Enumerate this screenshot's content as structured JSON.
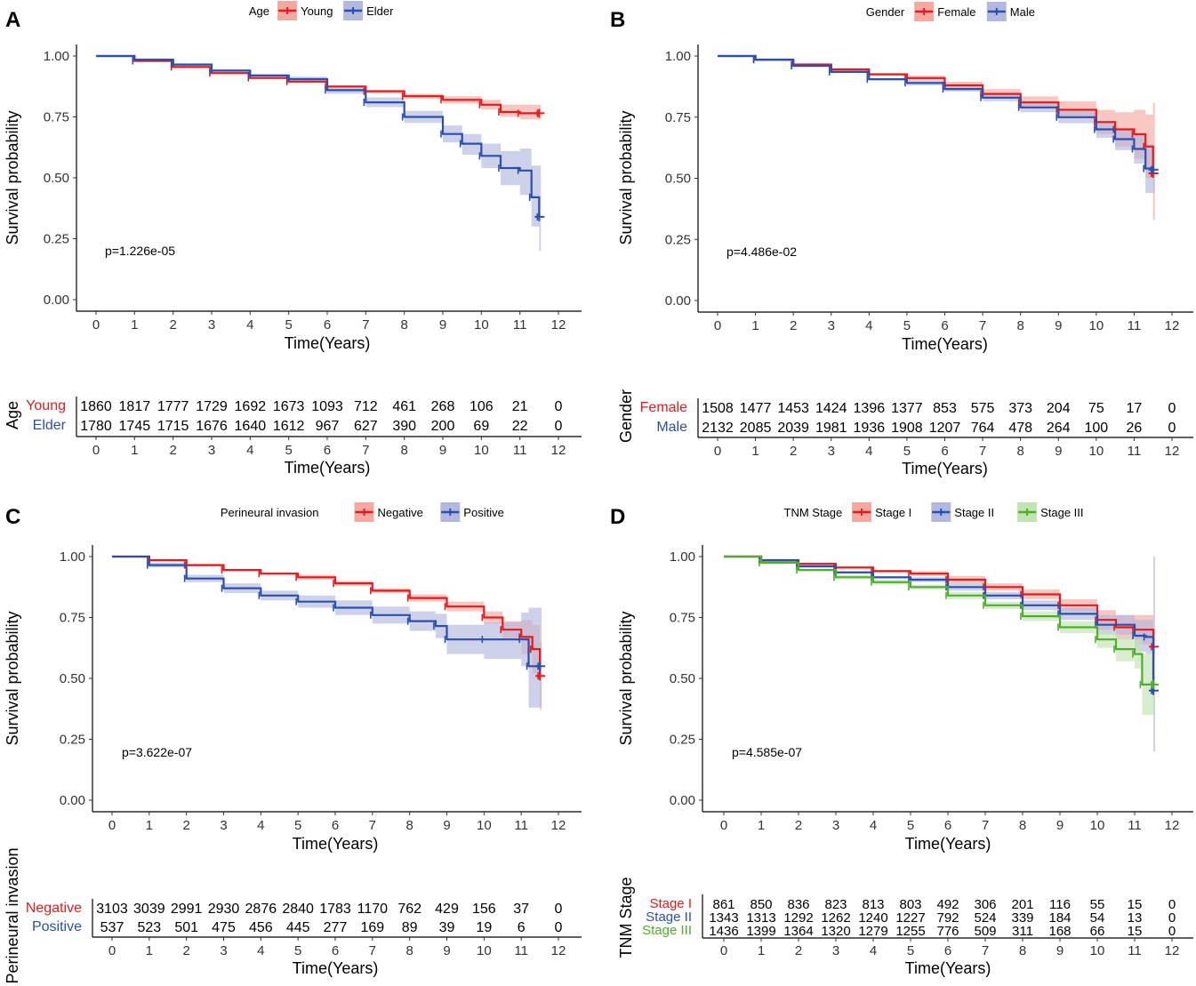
{
  "chart_data": [
    {
      "type": "line",
      "panel": "A",
      "title": "",
      "legend_title": "Age",
      "legend_position": "top",
      "xlabel": "Time(Years)",
      "ylabel": "Survival probability",
      "xlim": [
        0,
        12
      ],
      "ylim": [
        0,
        1
      ],
      "x_ticks": [
        "0",
        "1",
        "2",
        "3",
        "4",
        "5",
        "6",
        "7",
        "8",
        "9",
        "10",
        "11",
        "12"
      ],
      "y_ticks": [
        "0.00",
        "0.25",
        "0.50",
        "0.75",
        "1.00"
      ],
      "annotation": "p=1.226e-05",
      "series": [
        {
          "name": "Young",
          "color": "#e41a1c",
          "band": "#f4a9a0",
          "x": [
            0,
            1,
            2,
            3,
            4,
            5,
            6,
            7,
            8,
            9,
            10,
            10.5,
            11,
            11.5
          ],
          "y": [
            1.0,
            0.98,
            0.955,
            0.93,
            0.91,
            0.895,
            0.875,
            0.855,
            0.835,
            0.82,
            0.8,
            0.77,
            0.765,
            0.765
          ],
          "lower": [
            1,
            0.975,
            0.95,
            0.925,
            0.905,
            0.89,
            0.87,
            0.847,
            0.825,
            0.805,
            0.78,
            0.75,
            0.74,
            0.74
          ],
          "upper": [
            1,
            0.985,
            0.96,
            0.935,
            0.915,
            0.9,
            0.88,
            0.862,
            0.845,
            0.835,
            0.82,
            0.8,
            0.8,
            0.8
          ]
        },
        {
          "name": "Elder",
          "color": "#2b4fad",
          "band": "#b3b8de",
          "x": [
            0,
            1,
            2,
            3,
            4,
            5,
            6,
            7,
            8,
            9,
            9.5,
            10,
            10.5,
            11,
            11.3,
            11.5
          ],
          "y": [
            1.0,
            0.985,
            0.965,
            0.94,
            0.92,
            0.905,
            0.86,
            0.81,
            0.75,
            0.68,
            0.64,
            0.59,
            0.54,
            0.53,
            0.42,
            0.34
          ],
          "lower": [
            1,
            0.98,
            0.96,
            0.935,
            0.915,
            0.895,
            0.845,
            0.79,
            0.725,
            0.645,
            0.595,
            0.54,
            0.47,
            0.43,
            0.3,
            0.2
          ],
          "upper": [
            1,
            0.99,
            0.97,
            0.945,
            0.925,
            0.915,
            0.875,
            0.83,
            0.775,
            0.715,
            0.68,
            0.64,
            0.61,
            0.62,
            0.55,
            0.55
          ]
        }
      ],
      "risk_table": {
        "title": "Age",
        "rows": [
          {
            "label": "Young",
            "values": [
              "1860",
              "1817",
              "1777",
              "1729",
              "1692",
              "1673",
              "1093",
              "712",
              "461",
              "268",
              "106",
              "21",
              "0"
            ]
          },
          {
            "label": "Elder",
            "values": [
              "1780",
              "1745",
              "1715",
              "1676",
              "1640",
              "1612",
              "967",
              "627",
              "390",
              "200",
              "69",
              "22",
              "0"
            ]
          }
        ]
      }
    },
    {
      "type": "line",
      "panel": "B",
      "title": "",
      "legend_title": "Gender",
      "legend_position": "top",
      "xlabel": "Time(Years)",
      "ylabel": "Survival probability",
      "xlim": [
        0,
        12
      ],
      "ylim": [
        0,
        1
      ],
      "x_ticks": [
        "0",
        "1",
        "2",
        "3",
        "4",
        "5",
        "6",
        "7",
        "8",
        "9",
        "10",
        "11",
        "12"
      ],
      "y_ticks": [
        "0.00",
        "0.25",
        "0.50",
        "0.75",
        "1.00"
      ],
      "annotation": "p=4.486e-02",
      "series": [
        {
          "name": "Female",
          "color": "#e41a1c",
          "band": "#f4a9a0",
          "x": [
            0,
            1,
            2,
            3,
            4,
            5,
            6,
            7,
            8,
            9,
            10,
            10.5,
            11,
            11.3,
            11.5
          ],
          "y": [
            1.0,
            0.985,
            0.965,
            0.945,
            0.925,
            0.91,
            0.88,
            0.845,
            0.81,
            0.78,
            0.73,
            0.7,
            0.68,
            0.63,
            0.52
          ],
          "lower": [
            1,
            0.98,
            0.96,
            0.94,
            0.92,
            0.9,
            0.865,
            0.825,
            0.785,
            0.745,
            0.68,
            0.63,
            0.58,
            0.5,
            0.33
          ],
          "upper": [
            1,
            0.99,
            0.97,
            0.95,
            0.93,
            0.92,
            0.895,
            0.865,
            0.835,
            0.815,
            0.78,
            0.77,
            0.78,
            0.76,
            0.81
          ]
        },
        {
          "name": "Male",
          "color": "#2b4fad",
          "band": "#b3b8de",
          "x": [
            0,
            1,
            2,
            3,
            4,
            5,
            6,
            7,
            8,
            9,
            10,
            10.5,
            11,
            11.3,
            11.5
          ],
          "y": [
            1.0,
            0.985,
            0.96,
            0.935,
            0.905,
            0.89,
            0.865,
            0.83,
            0.79,
            0.75,
            0.7,
            0.66,
            0.62,
            0.54,
            0.535
          ],
          "lower": [
            1,
            0.98,
            0.955,
            0.93,
            0.9,
            0.88,
            0.855,
            0.815,
            0.77,
            0.725,
            0.665,
            0.615,
            0.56,
            0.44,
            0.44
          ],
          "upper": [
            1,
            0.99,
            0.965,
            0.94,
            0.91,
            0.9,
            0.875,
            0.845,
            0.81,
            0.775,
            0.735,
            0.7,
            0.68,
            0.64,
            0.63
          ]
        }
      ],
      "risk_table": {
        "title": "Gender",
        "rows": [
          {
            "label": "Female",
            "values": [
              "1508",
              "1477",
              "1453",
              "1424",
              "1396",
              "1377",
              "853",
              "575",
              "373",
              "204",
              "75",
              "17",
              "0"
            ]
          },
          {
            "label": "Male",
            "values": [
              "2132",
              "2085",
              "2039",
              "1981",
              "1936",
              "1908",
              "1207",
              "764",
              "478",
              "264",
              "100",
              "26",
              "0"
            ]
          }
        ]
      }
    },
    {
      "type": "line",
      "panel": "C",
      "title": "",
      "legend_title": "Perineural invasion",
      "legend_position": "top",
      "xlabel": "Time(Years)",
      "ylabel": "Survival probability",
      "xlim": [
        0,
        12
      ],
      "ylim": [
        0,
        1
      ],
      "x_ticks": [
        "0",
        "1",
        "2",
        "3",
        "4",
        "5",
        "6",
        "7",
        "8",
        "9",
        "10",
        "11",
        "12"
      ],
      "y_ticks": [
        "0.00",
        "0.25",
        "0.50",
        "0.75",
        "1.00"
      ],
      "annotation": "p=3.622e-07",
      "series": [
        {
          "name": "Negative",
          "color": "#e41a1c",
          "band": "#f4a9a0",
          "x": [
            0,
            1,
            2,
            3,
            4,
            5,
            6,
            7,
            8,
            9,
            10,
            10.5,
            11,
            11.3,
            11.5
          ],
          "y": [
            1.0,
            0.985,
            0.965,
            0.945,
            0.93,
            0.915,
            0.89,
            0.86,
            0.83,
            0.795,
            0.75,
            0.7,
            0.67,
            0.62,
            0.51
          ],
          "lower": [
            1,
            0.98,
            0.96,
            0.94,
            0.925,
            0.905,
            0.88,
            0.85,
            0.815,
            0.775,
            0.725,
            0.665,
            0.6,
            0.52,
            0.37
          ],
          "upper": [
            1,
            0.99,
            0.97,
            0.95,
            0.935,
            0.925,
            0.9,
            0.87,
            0.845,
            0.815,
            0.775,
            0.735,
            0.74,
            0.72,
            0.65
          ]
        },
        {
          "name": "Positive",
          "color": "#2b4fad",
          "band": "#b3b8de",
          "x": [
            0,
            1,
            2,
            3,
            4,
            5,
            6,
            7,
            8,
            8.7,
            9,
            10,
            11,
            11.2,
            11.5
          ],
          "y": [
            1.0,
            0.965,
            0.91,
            0.87,
            0.84,
            0.815,
            0.79,
            0.76,
            0.735,
            0.715,
            0.66,
            0.66,
            0.66,
            0.55,
            0.55
          ],
          "lower": [
            1,
            0.955,
            0.895,
            0.85,
            0.82,
            0.79,
            0.76,
            0.725,
            0.695,
            0.665,
            0.6,
            0.58,
            0.55,
            0.38,
            0.38
          ],
          "upper": [
            1,
            0.975,
            0.925,
            0.89,
            0.86,
            0.84,
            0.82,
            0.795,
            0.775,
            0.765,
            0.72,
            0.73,
            0.77,
            0.79,
            0.79
          ]
        }
      ],
      "risk_table": {
        "title": "Perineural invasion",
        "rows": [
          {
            "label": "Negative",
            "values": [
              "3103",
              "3039",
              "2991",
              "2930",
              "2876",
              "2840",
              "1783",
              "1170",
              "762",
              "429",
              "156",
              "37",
              "0"
            ]
          },
          {
            "label": "Positive",
            "values": [
              "537",
              "523",
              "501",
              "475",
              "456",
              "445",
              "277",
              "169",
              "89",
              "39",
              "19",
              "6",
              "0"
            ]
          }
        ]
      }
    },
    {
      "type": "line",
      "panel": "D",
      "title": "",
      "legend_title": "TNM Stage",
      "legend_position": "top",
      "xlabel": "Time(Years)",
      "ylabel": "Survival probability",
      "xlim": [
        0,
        12
      ],
      "ylim": [
        0,
        1
      ],
      "x_ticks": [
        "0",
        "1",
        "2",
        "3",
        "4",
        "5",
        "6",
        "7",
        "8",
        "9",
        "10",
        "11",
        "12"
      ],
      "y_ticks": [
        "0.00",
        "0.25",
        "0.50",
        "0.75",
        "1.00"
      ],
      "annotation": "p=4.585e-07",
      "series": [
        {
          "name": "Stage I",
          "color": "#e41a1c",
          "band": "#f4a9a0",
          "x": [
            0,
            1,
            2,
            3,
            4,
            5,
            6,
            7,
            8,
            9,
            10,
            10.5,
            11,
            11.5
          ],
          "y": [
            1.0,
            0.985,
            0.97,
            0.955,
            0.94,
            0.93,
            0.905,
            0.875,
            0.845,
            0.8,
            0.74,
            0.71,
            0.7,
            0.63
          ],
          "lower": [
            1,
            0.98,
            0.965,
            0.95,
            0.935,
            0.92,
            0.89,
            0.86,
            0.825,
            0.775,
            0.7,
            0.66,
            0.64,
            0.56
          ],
          "upper": [
            1,
            0.99,
            0.975,
            0.96,
            0.945,
            0.94,
            0.92,
            0.89,
            0.865,
            0.825,
            0.78,
            0.76,
            0.76,
            0.7
          ]
        },
        {
          "name": "Stage II",
          "color": "#2b4fad",
          "band": "#b3b8de",
          "x": [
            0,
            1,
            2,
            3,
            4,
            5,
            6,
            7,
            8,
            9,
            10,
            11,
            11.3,
            11.5
          ],
          "y": [
            1.0,
            0.985,
            0.96,
            0.935,
            0.915,
            0.905,
            0.875,
            0.84,
            0.8,
            0.765,
            0.72,
            0.675,
            0.67,
            0.45
          ],
          "lower": [
            1,
            0.98,
            0.955,
            0.93,
            0.91,
            0.895,
            0.86,
            0.825,
            0.78,
            0.74,
            0.68,
            0.61,
            0.6,
            0.2
          ],
          "upper": [
            1,
            0.99,
            0.965,
            0.94,
            0.92,
            0.915,
            0.89,
            0.855,
            0.82,
            0.79,
            0.76,
            0.74,
            0.74,
            1.0
          ]
        },
        {
          "name": "Stage III",
          "color": "#4daf2a",
          "band": "#c3e3b3",
          "x": [
            0,
            1,
            2,
            3,
            4,
            5,
            6,
            7,
            8,
            9,
            10,
            10.5,
            11,
            11.2,
            11.5
          ],
          "y": [
            1.0,
            0.975,
            0.945,
            0.915,
            0.895,
            0.875,
            0.84,
            0.8,
            0.755,
            0.71,
            0.66,
            0.62,
            0.6,
            0.475,
            0.475
          ],
          "lower": [
            1,
            0.97,
            0.94,
            0.91,
            0.885,
            0.865,
            0.825,
            0.785,
            0.735,
            0.685,
            0.625,
            0.57,
            0.54,
            0.35,
            0.35
          ],
          "upper": [
            1,
            0.98,
            0.95,
            0.925,
            0.905,
            0.885,
            0.855,
            0.815,
            0.775,
            0.735,
            0.695,
            0.67,
            0.66,
            0.6,
            0.6
          ]
        }
      ],
      "risk_table": {
        "title": "TNM Stage",
        "rows": [
          {
            "label": "Stage I",
            "values": [
              "861",
              "850",
              "836",
              "823",
              "813",
              "803",
              "492",
              "306",
              "201",
              "116",
              "55",
              "15",
              "0"
            ]
          },
          {
            "label": "Stage II",
            "values": [
              "1343",
              "1313",
              "1292",
              "1262",
              "1240",
              "1227",
              "792",
              "524",
              "339",
              "184",
              "54",
              "13",
              "0"
            ]
          },
          {
            "label": "Stage III",
            "values": [
              "1436",
              "1399",
              "1364",
              "1320",
              "1279",
              "1255",
              "776",
              "509",
              "311",
              "168",
              "66",
              "15",
              "0"
            ]
          }
        ]
      }
    }
  ]
}
